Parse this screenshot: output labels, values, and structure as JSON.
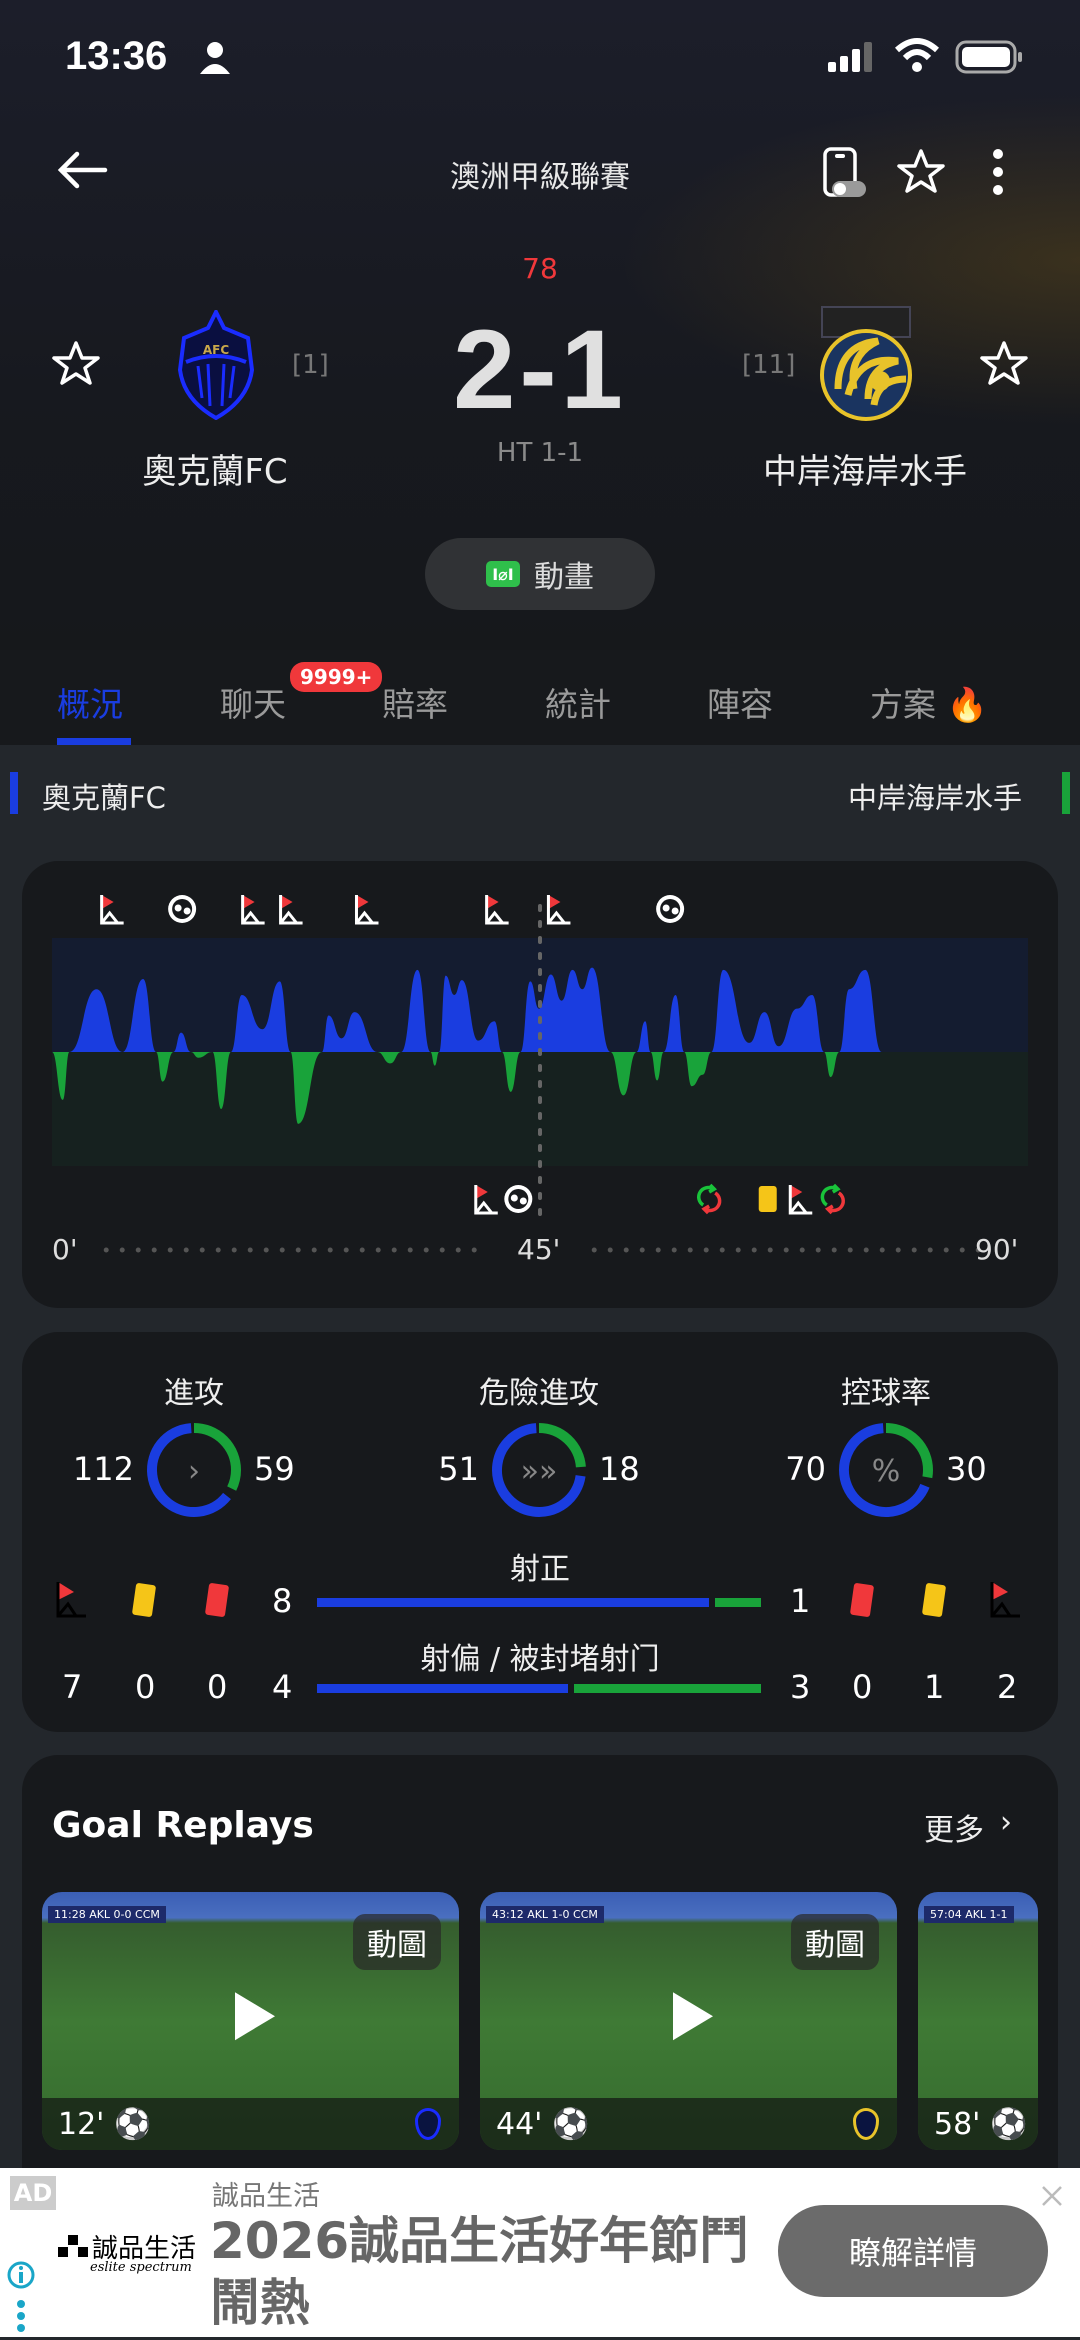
{
  "status_bar": {
    "time": "13:36",
    "icons": [
      "person-icon",
      "signal-icon",
      "wifi-icon",
      "battery-icon"
    ]
  },
  "header": {
    "title": "澳洲甲級聯賽",
    "back_icon": "arrow-left-icon",
    "icons": [
      "phone-toggle-icon",
      "star-icon",
      "more-vertical-icon"
    ]
  },
  "match": {
    "minute": "78",
    "score": "2-1",
    "halftime": "HT 1-1",
    "home": {
      "name": "奧克蘭FC",
      "rank": "[1]",
      "color": "#1a3de0"
    },
    "away": {
      "name": "中岸海岸水手",
      "rank": "[11]",
      "color": "#19a33a"
    },
    "animation_label": "動畫"
  },
  "tabs": [
    {
      "label": "概況",
      "active": true
    },
    {
      "label": "聊天",
      "badge": "9999+"
    },
    {
      "label": "賠率"
    },
    {
      "label": "統計"
    },
    {
      "label": "陣容"
    },
    {
      "label": "方案",
      "icon": "fire-icon"
    }
  ],
  "team_row": {
    "home": "奧克蘭FC",
    "away": "中岸海岸水手"
  },
  "timeline": {
    "axis_labels": [
      "0'",
      "45'",
      "90'"
    ],
    "momentum_minutes": [
      0,
      1,
      1.6,
      4.1,
      6.5,
      8.4,
      9.6,
      10.2,
      11.2,
      11.9,
      12.8,
      13.5,
      14.8,
      15.6,
      16.5,
      17.5,
      19.4,
      21,
      22,
      22.7,
      24.9,
      25.5,
      26.7,
      27.9,
      30,
      31.2,
      32.2,
      33.7,
      34.9,
      35.3,
      35.7,
      36.3,
      37.1,
      37.8,
      39.3,
      40.8,
      41.5,
      42.3,
      43.2,
      44.1,
      44.9,
      46,
      47,
      48,
      48.9,
      49.8,
      51.5,
      52.7,
      53.9,
      54.7,
      55.2,
      55.8,
      56.4,
      57.5,
      58.3,
      59,
      60,
      60.8,
      61.9,
      64.3,
      65.7,
      67,
      68.7,
      70.1,
      71.2,
      71.8,
      72.6,
      73.5,
      75,
      76.5
    ],
    "momentum_values": [
      0,
      -0.42,
      0,
      0.55,
      0,
      0.64,
      0,
      -0.26,
      0,
      0.17,
      0,
      -0.05,
      0,
      -0.5,
      0,
      0.5,
      0.2,
      0.62,
      0,
      -0.63,
      0,
      0.32,
      0.12,
      0.35,
      0,
      -0.1,
      0,
      0.72,
      0,
      -0.12,
      0,
      0.67,
      0.5,
      0.63,
      0.1,
      0.27,
      0,
      -0.35,
      0,
      0.62,
      0.38,
      0.68,
      0.45,
      0.72,
      0.55,
      0.74,
      0,
      -0.38,
      0,
      0.27,
      0,
      -0.25,
      0,
      0.5,
      0,
      -0.3,
      -0.2,
      0,
      0.72,
      0.08,
      0.35,
      0.05,
      0.38,
      0.5,
      0,
      -0.22,
      0,
      0.55,
      0.72,
      0
    ],
    "home_events": [
      {
        "minute": 5.5,
        "type": "corner"
      },
      {
        "minute": 12,
        "type": "goal"
      },
      {
        "minute": 18.5,
        "type": "corner"
      },
      {
        "minute": 22,
        "type": "corner"
      },
      {
        "minute": 29,
        "type": "corner"
      },
      {
        "minute": 41,
        "type": "corner"
      },
      {
        "minute": 46.7,
        "type": "corner"
      },
      {
        "minute": 57,
        "type": "goal"
      }
    ],
    "away_events": [
      {
        "minute": 40,
        "type": "corner"
      },
      {
        "minute": 43,
        "type": "goal"
      },
      {
        "minute": 60.6,
        "type": "substitution"
      },
      {
        "minute": 66,
        "type": "yellow-card"
      },
      {
        "minute": 69,
        "type": "corner"
      },
      {
        "minute": 72,
        "type": "substitution"
      }
    ]
  },
  "stats": {
    "rings": [
      {
        "label": "進攻",
        "home": "112",
        "away": "59",
        "icon": "chevron-right-icon",
        "glyph": "›"
      },
      {
        "label": "危險進攻",
        "home": "51",
        "away": "18",
        "icon": "triple-chevron-icon",
        "glyph": "»»"
      },
      {
        "label": "控球率",
        "home": "70",
        "away": "30",
        "icon": "percent-icon",
        "glyph": "%"
      }
    ],
    "shots_on": {
      "label": "射正",
      "home": "8",
      "away": "1"
    },
    "shots_off": {
      "label": "射偏 / 被封堵射门",
      "home": "4",
      "away": "3"
    },
    "home_counts": {
      "corners": "7",
      "yellow": "0",
      "red": "0"
    },
    "away_counts": {
      "red": "0",
      "yellow": "1",
      "corners": "2"
    }
  },
  "goal_replays": {
    "title": "Goal Replays",
    "more": "更多",
    "items": [
      {
        "minute": "12'",
        "badge": "動圖",
        "team": "home",
        "scoreboard": "11:28 AKL 0-0 CCM"
      },
      {
        "minute": "44'",
        "badge": "動圖",
        "team": "away",
        "scoreboard": "43:12 AKL 1-0 CCM"
      },
      {
        "minute": "58'",
        "team": "home",
        "scoreboard": "57:04 AKL 1-1"
      }
    ]
  },
  "ad": {
    "tag": "AD",
    "brand": "誠品生活",
    "brand_en": "eslite spectrum",
    "advertiser": "誠品生活",
    "headline": "2026誠品生活好年節鬥鬧熱",
    "cta": "瞭解詳情"
  }
}
